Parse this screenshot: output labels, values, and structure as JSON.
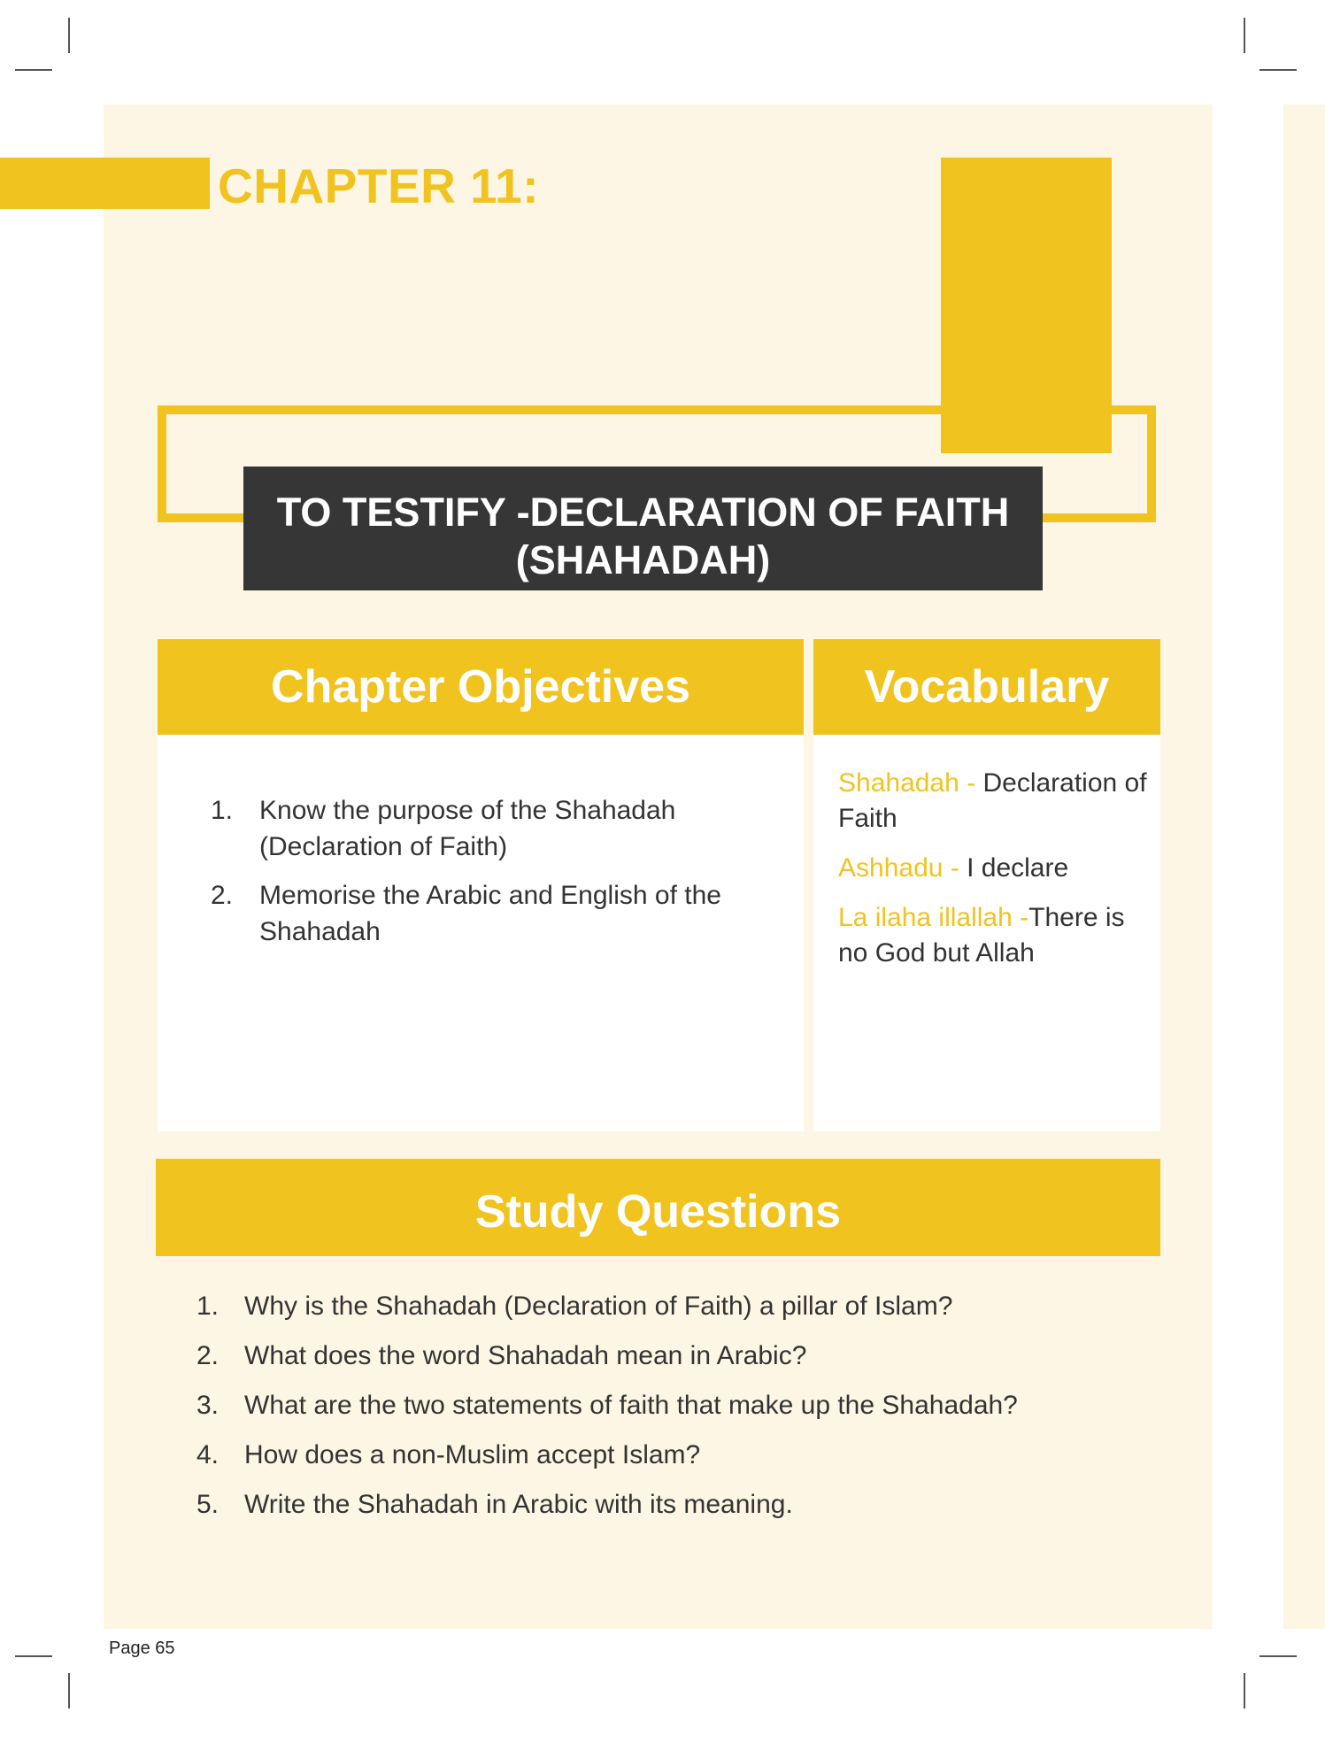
{
  "chapter": {
    "label": "CHAPTER 11:"
  },
  "title": {
    "line1": "TO TESTIFY -DECLARATION OF FAITH",
    "line2": "(SHAHADAH)"
  },
  "objectives": {
    "heading": "Chapter Objectives",
    "items": [
      {
        "num": "1.",
        "text": "Know the purpose of the Shahadah (Declaration of Faith)"
      },
      {
        "num": "2.",
        "text": "Memorise the Arabic and English of the Shahadah"
      }
    ]
  },
  "vocabulary": {
    "heading": "Vocabulary",
    "items": [
      {
        "term": "Shahadah - ",
        "definition": "Declaration of Faith"
      },
      {
        "term": "Ashhadu - ",
        "definition": "I declare"
      },
      {
        "term": "La ilaha illallah -",
        "definition": "There is no God but Allah"
      }
    ]
  },
  "study_questions": {
    "heading": "Study Questions",
    "items": [
      {
        "num": "1.",
        "text": "Why is the Shahadah (Declaration of Faith) a pillar of Islam?"
      },
      {
        "num": "2.",
        "text": "What does the word Shahadah mean in Arabic?"
      },
      {
        "num": "3.",
        "text": "What are the two statements of faith that make up the Shahadah?"
      },
      {
        "num": "4.",
        "text": "How does a non-Muslim accept Islam?"
      },
      {
        "num": "5.",
        "text": "Write the Shahadah in Arabic with its meaning."
      }
    ]
  },
  "footer": {
    "page_label": "Page 65"
  },
  "colors": {
    "accent": "#f0c31f",
    "dark_box": "#363636",
    "page_bg": "#fdf6e4"
  }
}
